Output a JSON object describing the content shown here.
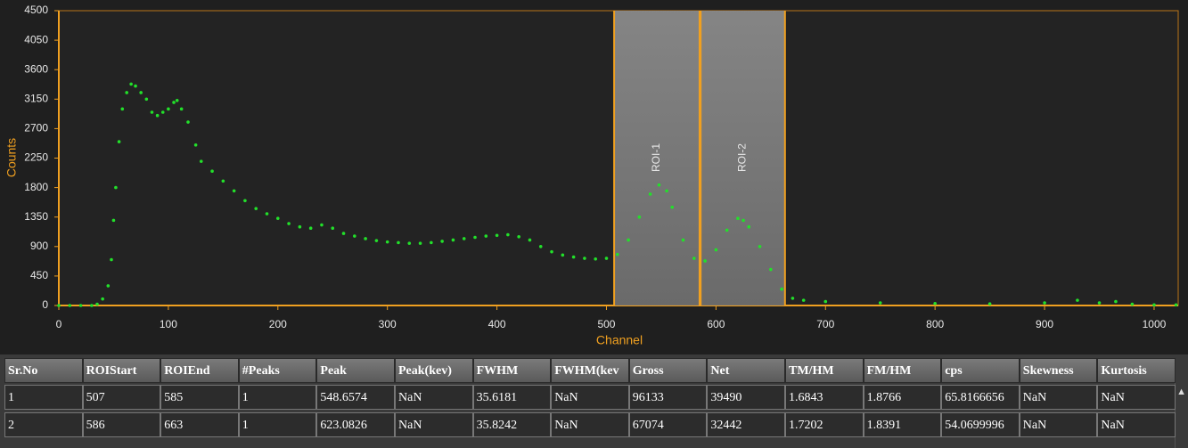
{
  "chart_data": {
    "type": "scatter",
    "x_label": "Channel",
    "y_label": "Counts",
    "xlim": [
      0,
      1022
    ],
    "ylim": [
      0,
      4500
    ],
    "xticks": [
      0,
      100,
      200,
      300,
      400,
      500,
      600,
      700,
      800,
      900,
      1000
    ],
    "yticks": [
      0,
      450,
      900,
      1350,
      1800,
      2250,
      2700,
      3150,
      3600,
      4050,
      4500
    ],
    "axis_color": "#f0a020",
    "rois": [
      {
        "label": "ROI-1",
        "start": 507,
        "end": 585
      },
      {
        "label": "ROI-2",
        "start": 586,
        "end": 663
      }
    ],
    "series": [
      {
        "name": "Counts",
        "color": "#22e02a",
        "x": [
          0,
          10,
          20,
          30,
          35,
          40,
          45,
          48,
          50,
          52,
          55,
          58,
          62,
          66,
          70,
          75,
          80,
          85,
          90,
          95,
          100,
          105,
          108,
          112,
          118,
          125,
          130,
          140,
          150,
          160,
          170,
          180,
          190,
          200,
          210,
          220,
          230,
          240,
          250,
          260,
          270,
          280,
          290,
          300,
          310,
          320,
          330,
          340,
          350,
          360,
          370,
          380,
          390,
          400,
          410,
          420,
          430,
          440,
          450,
          460,
          470,
          480,
          490,
          500,
          510,
          520,
          530,
          540,
          548,
          555,
          560,
          570,
          580,
          590,
          600,
          610,
          620,
          625,
          630,
          640,
          650,
          660,
          670,
          680,
          700,
          750,
          800,
          850,
          900,
          930,
          950,
          965,
          980,
          1000,
          1020
        ],
        "values": [
          0,
          0,
          0,
          0,
          20,
          100,
          300,
          700,
          1300,
          1800,
          2500,
          3000,
          3250,
          3380,
          3350,
          3250,
          3150,
          2950,
          2900,
          2950,
          3000,
          3100,
          3130,
          3000,
          2800,
          2450,
          2200,
          2050,
          1900,
          1750,
          1600,
          1480,
          1400,
          1330,
          1250,
          1200,
          1180,
          1230,
          1180,
          1100,
          1060,
          1020,
          990,
          970,
          960,
          950,
          950,
          960,
          980,
          1000,
          1020,
          1040,
          1060,
          1070,
          1080,
          1050,
          1000,
          900,
          820,
          770,
          740,
          720,
          710,
          720,
          780,
          1000,
          1350,
          1700,
          1840,
          1750,
          1500,
          1000,
          720,
          680,
          850,
          1150,
          1330,
          1300,
          1200,
          900,
          550,
          250,
          110,
          80,
          60,
          40,
          30,
          25,
          40,
          80,
          40,
          60,
          20,
          10,
          10
        ]
      }
    ]
  },
  "table": {
    "header": [
      "Sr.No",
      "ROIStart",
      "ROIEnd",
      "#Peaks",
      "Peak",
      "Peak(kev)",
      "FWHM",
      "FWHM(kev",
      "Gross",
      "Net",
      "TM/HM",
      "FM/HM",
      "cps",
      "Skewness",
      "Kurtosis"
    ],
    "rows": [
      [
        "1",
        "507",
        "585",
        "1",
        "548.6574",
        "NaN",
        "35.6181",
        "NaN",
        "96133",
        "39490",
        "1.6843",
        "1.8766",
        "65.8166656",
        "NaN",
        "NaN"
      ],
      [
        "2",
        "586",
        "663",
        "1",
        "623.0826",
        "NaN",
        "35.8242",
        "NaN",
        "67074",
        "32442",
        "1.7202",
        "1.8391",
        "54.0699996",
        "NaN",
        "NaN"
      ]
    ]
  }
}
